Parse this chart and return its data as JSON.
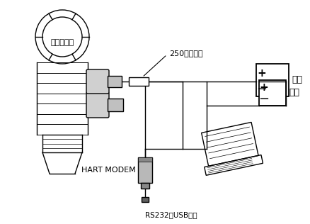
{
  "bg_color": "#ffffff",
  "line_color": "#000000",
  "label_radar": "雷达液位计",
  "label_resistor": "250欧姆电阻",
  "label_power": "电源",
  "label_hart": "HART MODEM",
  "label_rs232": "RS232或USB接口",
  "fig_width": 4.38,
  "fig_height": 3.16,
  "dpi": 100
}
